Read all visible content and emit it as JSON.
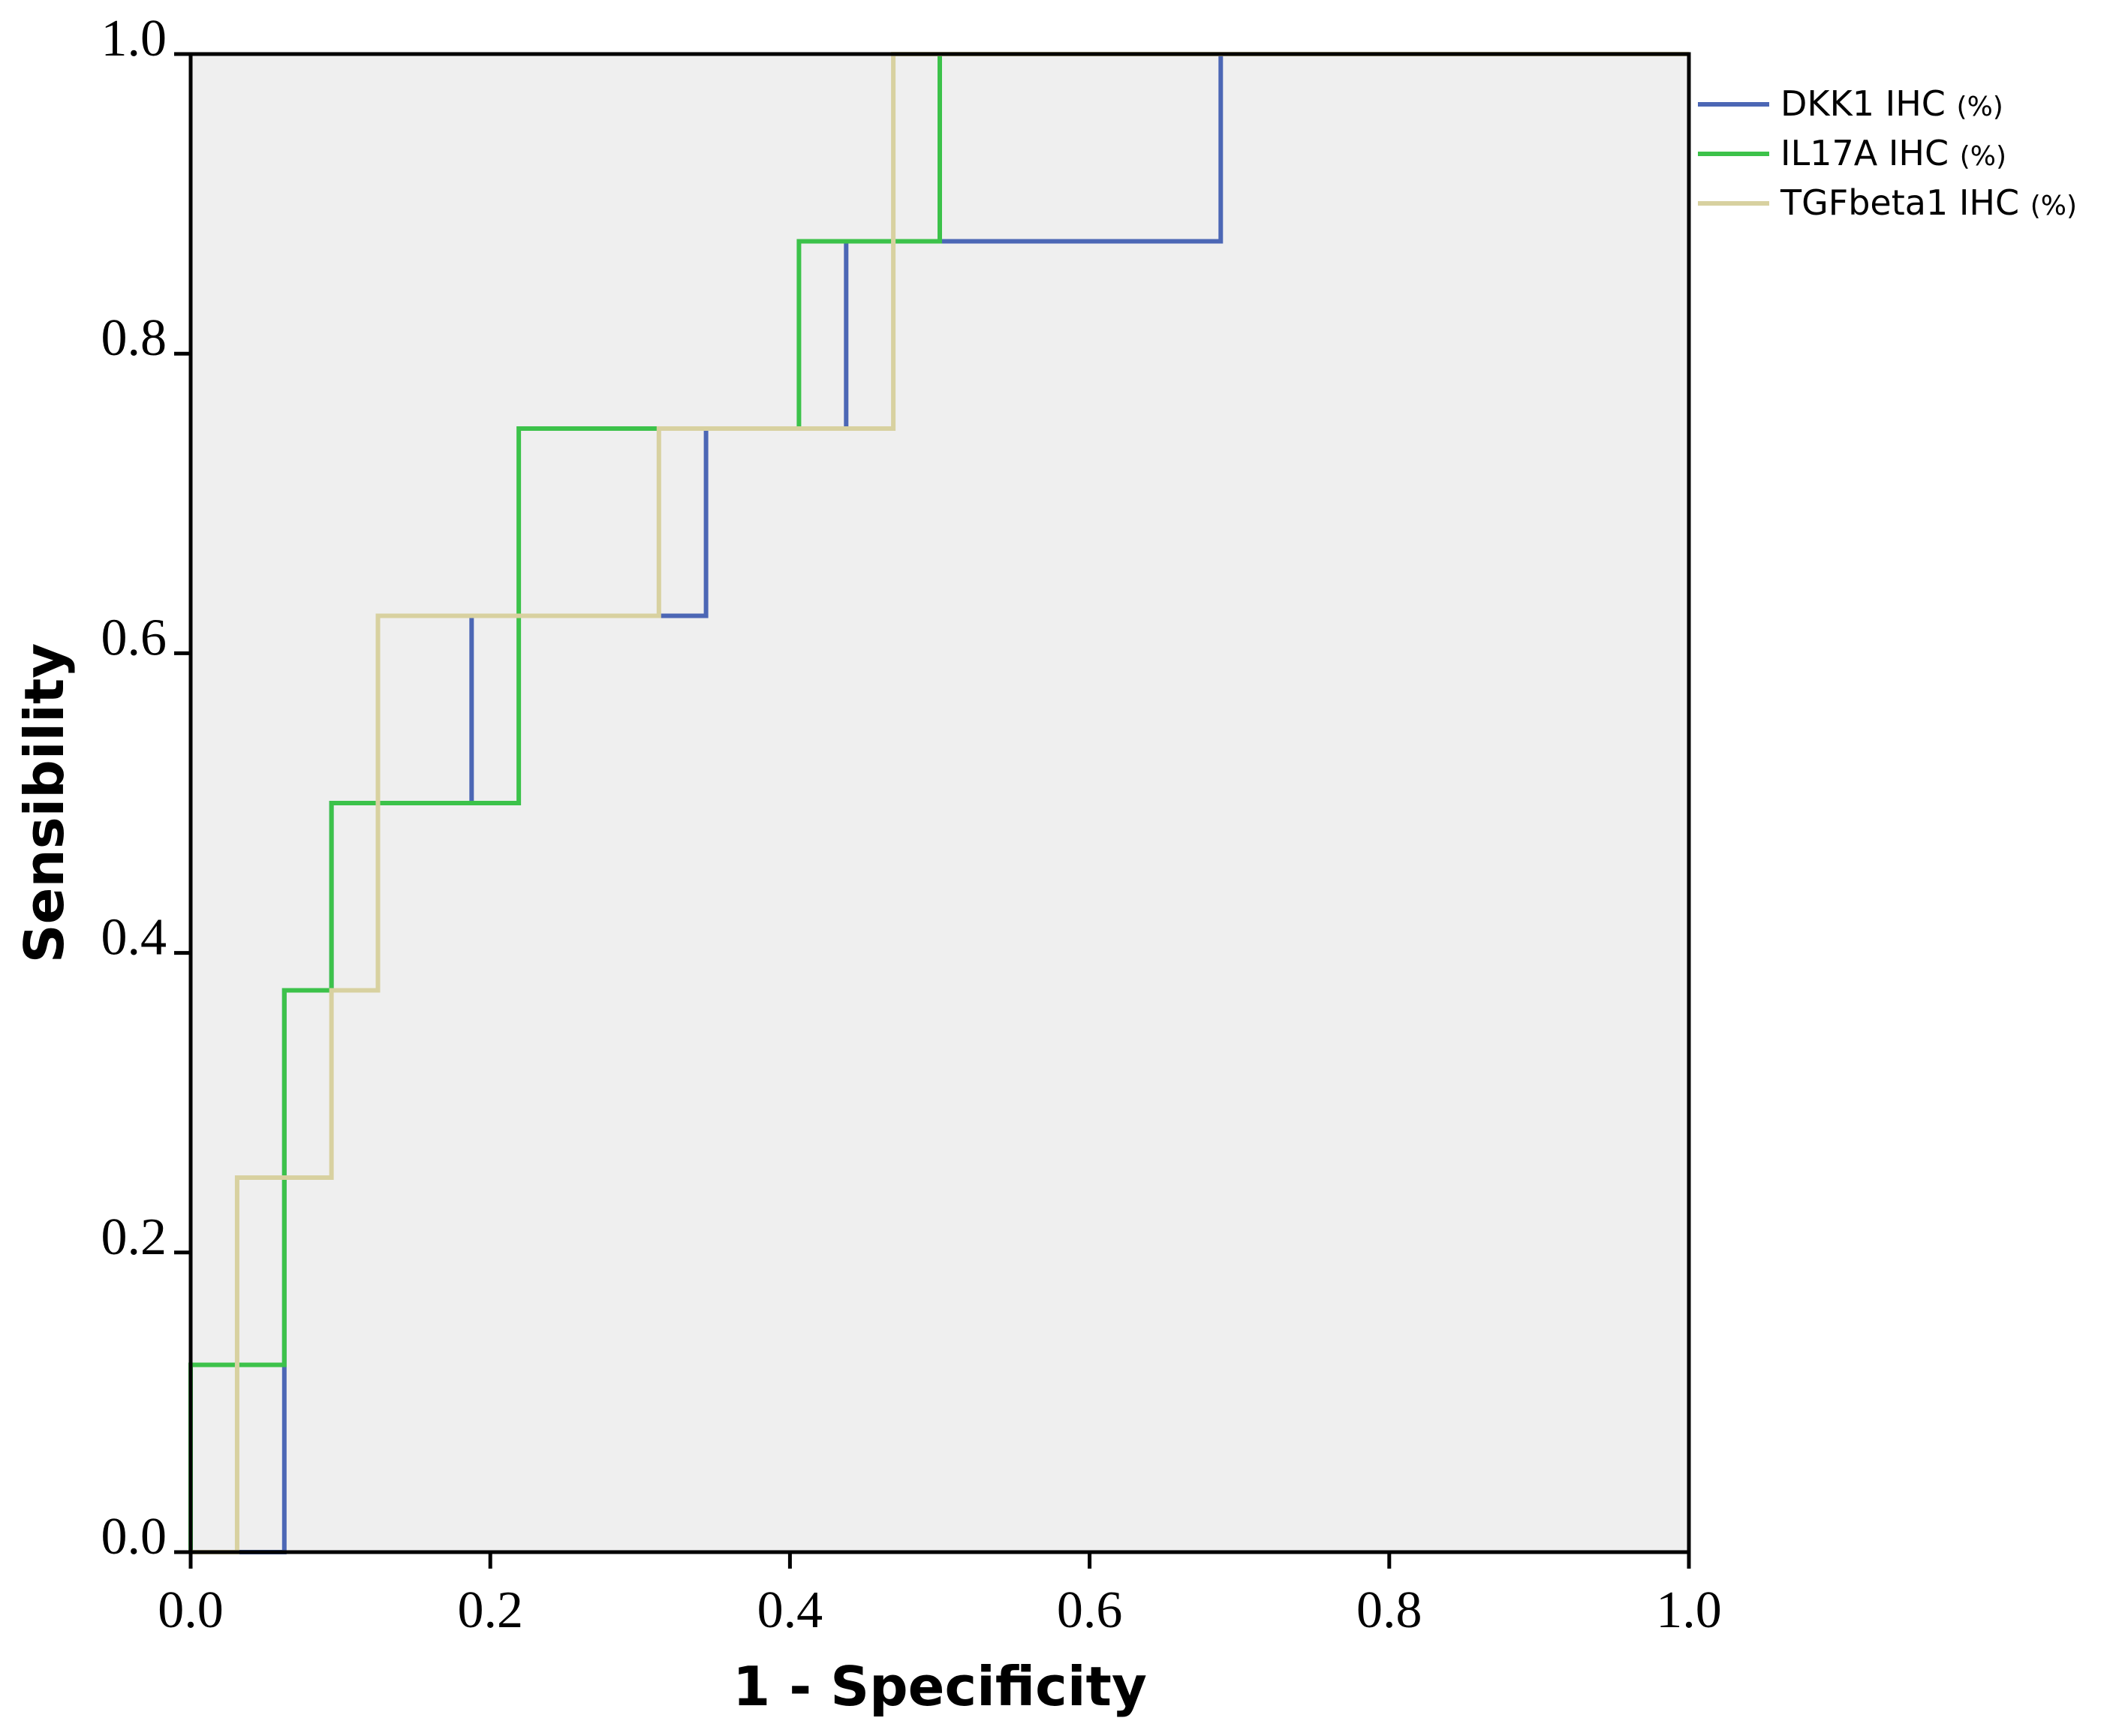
{
  "chart_data": {
    "type": "line",
    "title": "",
    "xlabel": "1 - Specificity",
    "ylabel": "Sensibility",
    "xlim": [
      0,
      1
    ],
    "ylim": [
      0,
      1
    ],
    "x_ticks": [
      "0.0",
      "0.2",
      "0.4",
      "0.6",
      "0.8",
      "1.0"
    ],
    "y_ticks": [
      "0.0",
      "0.2",
      "0.4",
      "0.6",
      "0.8",
      "1.0"
    ],
    "legend_position": "top-right",
    "plot_background": "#efefef",
    "series": [
      {
        "name": "DKK1 IHC",
        "unit": "(%)",
        "color": "#4c67b5",
        "x": [
          0,
          0.0625,
          0.0625,
          0.094,
          0.094,
          0.1875,
          0.1875,
          0.344,
          0.344,
          0.4375,
          0.4375,
          0.6875,
          0.6875,
          1.0
        ],
        "y": [
          0,
          0,
          0.375,
          0.375,
          0.5,
          0.5,
          0.625,
          0.625,
          0.75,
          0.75,
          0.875,
          0.875,
          1.0,
          1.0
        ]
      },
      {
        "name": "IL17A IHC",
        "unit": "(%)",
        "color": "#3cc24a",
        "x": [
          0,
          0,
          0.0625,
          0.0625,
          0.094,
          0.094,
          0.219,
          0.219,
          0.406,
          0.406,
          0.5,
          0.5,
          1.0
        ],
        "y": [
          0,
          0.125,
          0.125,
          0.375,
          0.375,
          0.5,
          0.5,
          0.75,
          0.75,
          0.875,
          0.875,
          1.0,
          1.0
        ]
      },
      {
        "name": "TGFbeta1 IHC",
        "unit": "(%)",
        "color": "#d8d1a0",
        "x": [
          0,
          0.031,
          0.031,
          0.094,
          0.094,
          0.125,
          0.125,
          0.3125,
          0.3125,
          0.469,
          0.469,
          1.0
        ],
        "y": [
          0,
          0,
          0.25,
          0.25,
          0.375,
          0.375,
          0.625,
          0.625,
          0.75,
          0.75,
          1.0,
          1.0
        ]
      }
    ]
  }
}
